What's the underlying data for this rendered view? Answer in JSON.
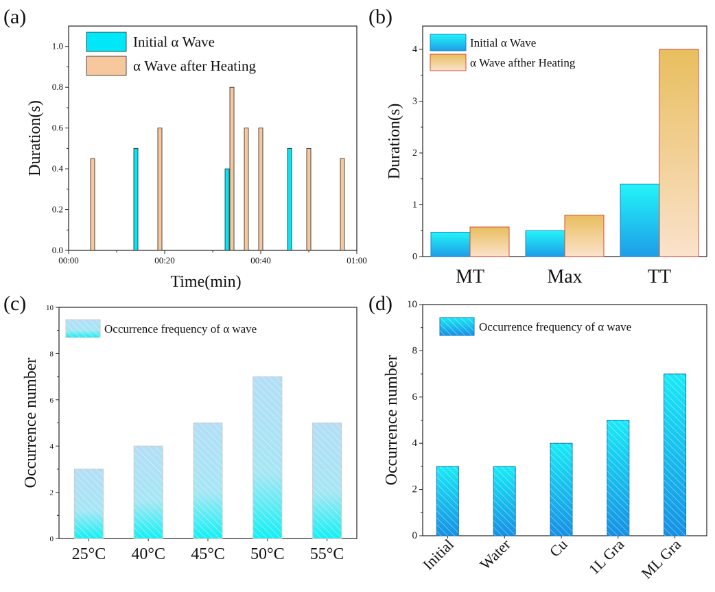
{
  "colors": {
    "initial": "#00e8f8",
    "heating": "#f7c89e",
    "heating_b_top": "#e8be5e",
    "heating_b_bottom": "#fbe2cb",
    "initial_b_top": "#22f4f8",
    "initial_b_bottom": "#1e9de8",
    "freq_c": "#b3def6",
    "freq_c_bottom": "#12f0f4",
    "freq_d": "#19eaf6",
    "freq_d_bottom": "#1790e4"
  },
  "chart_data": [
    {
      "panel_label": "(a)",
      "type": "bar",
      "xlabel": "Time(min)",
      "ylabel": "Duration(s)",
      "xlim": [
        0,
        60
      ],
      "ylim": [
        0,
        1.1
      ],
      "x_ticks": [
        0,
        20,
        40,
        60
      ],
      "x_tick_labels": [
        "00:00",
        "00:20",
        "00:40",
        "01:00"
      ],
      "y_ticks": [
        0.0,
        0.2,
        0.4,
        0.6,
        0.8,
        1.0
      ],
      "y_tick_labels": [
        "0.0",
        "0.2",
        "0.4",
        "0.6",
        "0.8",
        "1.0"
      ],
      "legend_position": "top-left",
      "series": [
        {
          "name": "Initial α Wave",
          "color": "initial",
          "points": [
            {
              "x": 14,
              "y": 0.5
            },
            {
              "x": 33,
              "y": 0.4
            },
            {
              "x": 46,
              "y": 0.5
            }
          ]
        },
        {
          "name": "α Wave after Heating",
          "color": "heating",
          "points": [
            {
              "x": 5,
              "y": 0.45
            },
            {
              "x": 19,
              "y": 0.6
            },
            {
              "x": 34,
              "y": 0.8
            },
            {
              "x": 37,
              "y": 0.6
            },
            {
              "x": 40,
              "y": 0.6
            },
            {
              "x": 50,
              "y": 0.5
            },
            {
              "x": 57,
              "y": 0.45
            }
          ]
        }
      ]
    },
    {
      "panel_label": "(b)",
      "type": "bar",
      "xlabel": "",
      "ylabel": "Duration(s)",
      "ylim": [
        0,
        4.45
      ],
      "y_ticks": [
        0,
        1,
        2,
        3,
        4
      ],
      "y_tick_labels": [
        "0",
        "1",
        "2",
        "3",
        "4"
      ],
      "categories": [
        "MT",
        "Max",
        "TT"
      ],
      "legend_position": "top-left",
      "series": [
        {
          "name": "Initial α Wave",
          "color": "initial_b",
          "values": [
            0.47,
            0.5,
            1.4
          ]
        },
        {
          "name": "α Wave afther Heating",
          "color": "heating_b",
          "values": [
            0.57,
            0.8,
            4.0
          ]
        }
      ]
    },
    {
      "panel_label": "(c)",
      "type": "bar",
      "xlabel": "",
      "ylabel": "Occurrence number",
      "ylim": [
        0,
        10
      ],
      "y_ticks": [
        0,
        2,
        4,
        6,
        8,
        10
      ],
      "y_tick_labels": [
        "0",
        "2",
        "4",
        "6",
        "8",
        "10"
      ],
      "categories": [
        "25°C",
        "40°C",
        "45°C",
        "50°C",
        "55°C"
      ],
      "legend_position": "top-left",
      "series": [
        {
          "name": "Occurrence frequency of α wave",
          "color": "freq_c",
          "values": [
            3,
            4,
            5,
            7,
            5
          ]
        }
      ]
    },
    {
      "panel_label": "(d)",
      "type": "bar",
      "xlabel": "",
      "ylabel": "Occurrence number",
      "ylim": [
        0,
        10
      ],
      "y_ticks": [
        0,
        2,
        4,
        6,
        8,
        10
      ],
      "y_tick_labels": [
        "0",
        "2",
        "4",
        "6",
        "8",
        "10"
      ],
      "categories": [
        "Initial",
        "Water",
        "Cu",
        "1L Gra",
        "ML Gra"
      ],
      "legend_position": "top-left",
      "series": [
        {
          "name": "Occurrence frequency of α wave",
          "color": "freq_d",
          "values": [
            3,
            3,
            4,
            5,
            7
          ]
        }
      ]
    }
  ]
}
